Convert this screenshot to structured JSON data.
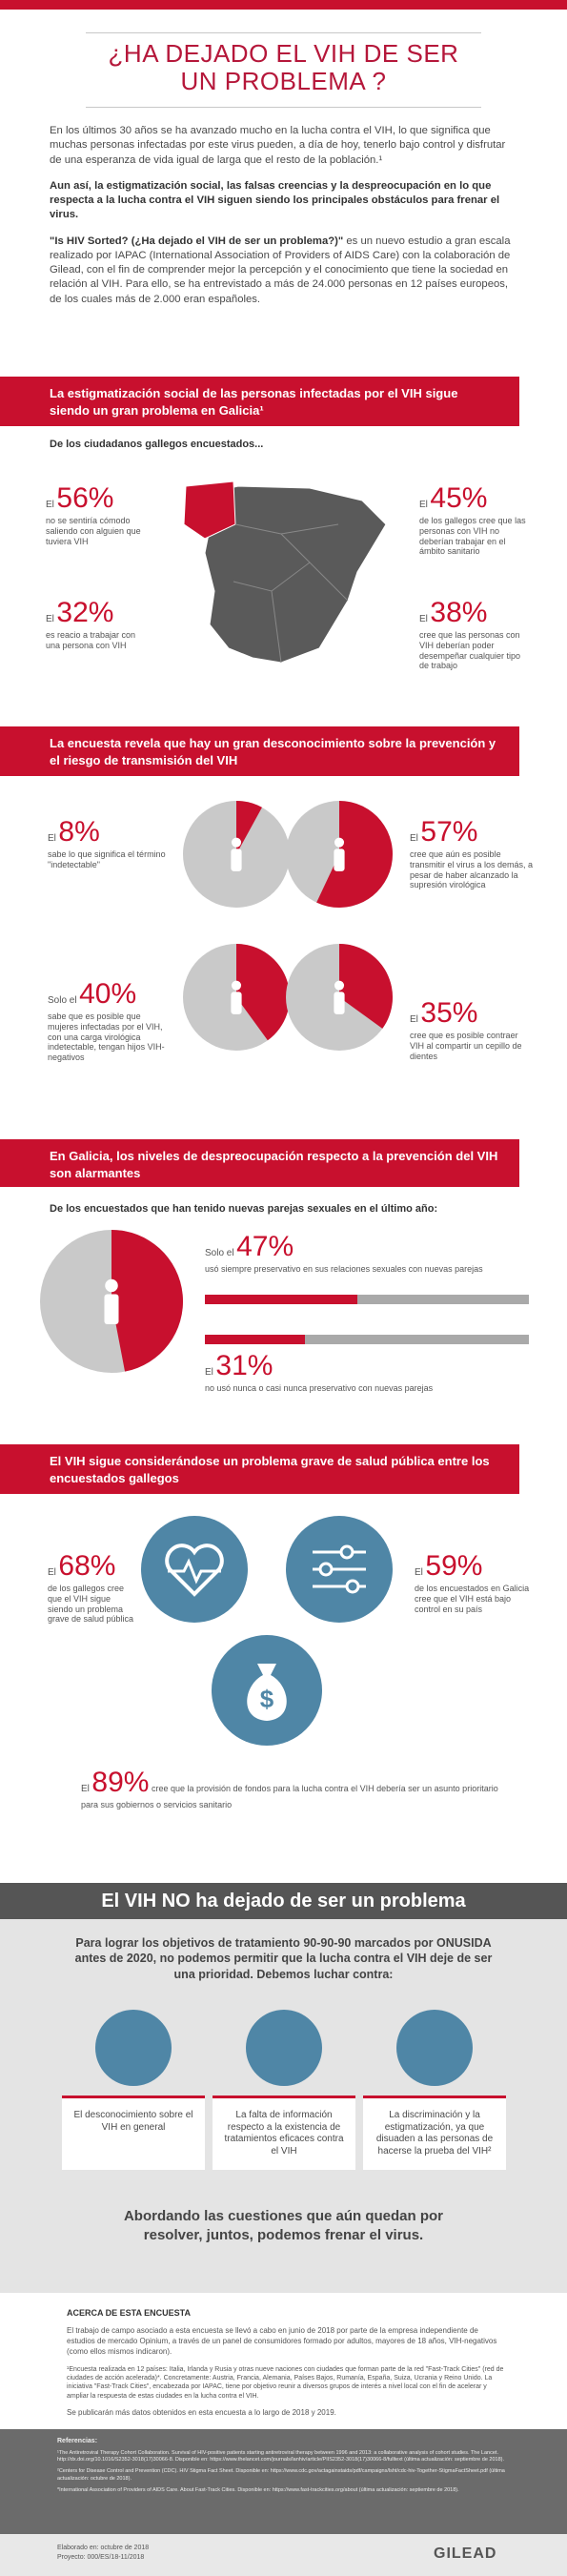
{
  "header": {
    "title": "¿HA DEJADO EL VIH DE SER UN PROBLEMA ?"
  },
  "intro": {
    "p1": "En los últimos 30 años se ha avanzado mucho en la lucha contra el VIH, lo que significa que muchas personas infectadas por este virus pueden, a día de hoy, tenerlo bajo control y disfrutar de una esperanza de vida igual de larga que el resto de la población.¹",
    "p2": "Aun así, la estigmatización social, las falsas creencias y la despreocupación en lo que respecta a la lucha contra el VIH siguen siendo los principales obstáculos para frenar el virus.",
    "p3_lead": "\"Is HIV Sorted? (¿Ha dejado el VIH de ser un problema?)\"",
    "p3": "es un nuevo estudio a gran escala realizado por IAPAC (International Association of Providers of AIDS Care) con la colaboración de Gilead, con el fin de comprender mejor la percepción y el conocimiento que tiene la sociedad en relación al VIH. Para ello, se ha entrevistado a más de 24.000 personas en 12 países europeos, de los cuales más de 2.000 eran españoles."
  },
  "stigma": {
    "title": "La estigmatización social de las personas infectadas por el VIH sigue siendo un gran problema en Galicia¹",
    "subtitle": "De los ciudadanos gallegos encuestados...",
    "stats": [
      {
        "prefix": "El",
        "label": "56%",
        "text": "no se sentiría cómodo saliendo con alguien que tuviera VIH"
      },
      {
        "prefix": "El",
        "label": "32%",
        "text": "es reacio a trabajar con una persona con VIH"
      },
      {
        "prefix": "El",
        "label": "45%",
        "text": "de los gallegos cree que las personas con VIH no deberían trabajar en el ámbito sanitario"
      },
      {
        "prefix": "El",
        "label": "38%",
        "text": "cree que las personas con VIH deberían poder desempeñar cualquier tipo de trabajo"
      }
    ]
  },
  "knowledge": {
    "title": "La encuesta revela que hay un gran desconocimiento sobre la prevención y el riesgo de transmisión del VIH",
    "stats": [
      {
        "prefix": "El",
        "value": 8,
        "label": "8%",
        "text": "sabe lo que significa el término \"indetectable\""
      },
      {
        "prefix": "El",
        "value": 57,
        "label": "57%",
        "text": "cree que aún es posible transmitir el virus a los demás, a pesar de haber alcanzado la supresión virológica"
      },
      {
        "prefix": "Solo el",
        "value": 40,
        "label": "40%",
        "text": "sabe que es posible que mujeres infectadas por el VIH, con una carga virológica indetectable, tengan hijos VIH-negativos"
      },
      {
        "prefix": "El",
        "value": 35,
        "label": "35%",
        "text": "cree que es posible contraer VIH al compartir un cepillo de dientes"
      }
    ]
  },
  "prevention": {
    "title": "En Galicia, los niveles de despreocupación respecto a la prevención del VIH son alarmantes",
    "subtitle": "De los encuestados que han tenido nuevas parejas sexuales en el último año:",
    "stats": [
      {
        "prefix": "Solo el",
        "value": 47,
        "label": "47%",
        "text": "usó siempre preservativo en sus relaciones sexuales con nuevas parejas"
      },
      {
        "prefix": "El",
        "value": 31,
        "label": "31%",
        "text": "no usó nunca o casi nunca preservativo con nuevas parejas"
      }
    ]
  },
  "health": {
    "title": "El VIH sigue considerándose un problema grave de salud pública entre los encuestados gallegos",
    "stats": [
      {
        "prefix": "El",
        "label": "68%",
        "text": "de los gallegos cree que el VIH sigue siendo un problema grave de salud pública"
      },
      {
        "prefix": "El",
        "label": "59%",
        "text": "de los encuestados en Galicia cree que el VIH está bajo control en su país"
      },
      {
        "prefix": "El",
        "label": "89%",
        "text": "cree que la provisión de fondos para la lucha contra el VIH debería ser un asunto prioritario para sus gobiernos o servicios sanitario"
      }
    ]
  },
  "conclusion": {
    "title": "El VIH NO ha dejado de ser un problema",
    "text": "Para lograr los objetivos de tratamiento 90-90-90 marcados por ONUSIDA antes de 2020, no podemos permitir que la lucha contra el VIH deje de ser una prioridad. Debemos luchar contra:",
    "items": [
      "El desconocimiento sobre el VIH en general",
      "La falta de información respecto a la existencia de tratamientos eficaces contra el VIH",
      "La discriminación y la estigmatización, ya que disuaden a las personas de hacerse la prueba del VIH²"
    ],
    "closing": "Abordando las cuestiones que aún quedan por resolver, juntos, podemos frenar el virus."
  },
  "about": {
    "title": "ACERCA DE ESTA ENCUESTA",
    "p1": "El trabajo de campo asociado a esta encuesta se llevó a cabo en junio de 2018 por parte de la empresa independiente de estudios de mercado Opinium, a través de un panel de consumidores formado por adultos, mayores de 18 años, VIH-negativos (como ellos mismos indicaron).",
    "p2": "¹Encuesta realizada en 12 países: Italia, Irlanda y Rusia y otras nueve naciones con ciudades que forman parte de la red \"Fast-Track Cities\" (red de ciudades de acción acelerada)*. Concretamente: Austria, Francia, Alemania, Países Bajos, Rumanía, España, Suiza, Ucrania y Reino Unido. La iniciativa \"Fast-Track Cities\", encabezada por IAPAC, tiene por objetivo reunir a diversos grupos de interés a nivel local con el fin de acelerar y ampliar la respuesta de estas ciudades en la lucha contra el VIH.",
    "p3": "Se publicarán más datos obtenidos en esta encuesta a lo largo de 2018 y 2019."
  },
  "references": {
    "title": "Referencias:",
    "items": [
      "¹The Antiretroviral Therapy Cohort Collaboration. Survival of HIV-positive patients starting antiretroviral therapy between 1996 and 2013: a collaborative analysis of cohort studies. The Lancet. http://dx.doi.org/10.1016/S2352-3018(17)30066-8. Disponible en: https://www.thelancet.com/journals/lanhiv/article/PIIS2352-3018(17)30066-8/fulltext (última actualización: septiembre de 2018).",
      "²Centers for Disease Control and Prevention (CDC). HIV Stigma Fact Sheet. Disponible en: https://www.cdc.gov/actagainstaids/pdf/campaigns/lsht/cdc-hiv-Together-StigmaFactSheet.pdf (última actualización: octubre de 2018).",
      "*International Association of Providers of AIDS Care. About Fast-Track Cities. Disponible en: https://www.fast-trackcities.org/about (última actualización: septiembre de 2018)."
    ]
  },
  "footer": {
    "date": "Elaborado en: octubre de 2018",
    "project": "Proyecto: 000/ES/18-11/2018",
    "brand": "GILEAD"
  }
}
